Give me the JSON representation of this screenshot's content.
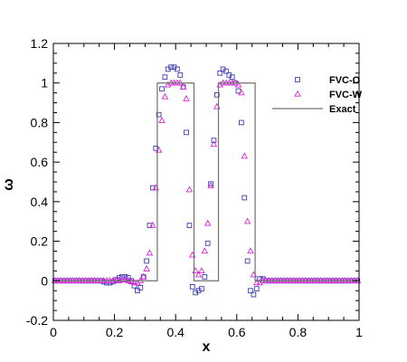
{
  "chart_data": {
    "type": "scatter",
    "xlabel": "x",
    "ylabel": "ω",
    "xlim": [
      0,
      1
    ],
    "ylim": [
      -0.2,
      1.2
    ],
    "xticks": [
      0,
      0.2,
      0.4,
      0.6,
      0.8,
      1
    ],
    "xtick_labels": [
      "0",
      "0.2",
      "0.4",
      "0.6",
      "0.8",
      "1"
    ],
    "yticks": [
      -0.2,
      0,
      0.2,
      0.4,
      0.6,
      0.8,
      1,
      1.2
    ],
    "ytick_labels": [
      "-0.2",
      "0",
      "0.2",
      "0.4",
      "0.6",
      "0.8",
      "1",
      "1.2"
    ],
    "grid": false,
    "legend_position": "top-right",
    "series": [
      {
        "name": "FVC-O",
        "marker": "square",
        "color": "#3b3bb3",
        "x": [
          0.005,
          0.015,
          0.025,
          0.035,
          0.045,
          0.055,
          0.065,
          0.075,
          0.085,
          0.095,
          0.105,
          0.115,
          0.125,
          0.135,
          0.145,
          0.155,
          0.165,
          0.175,
          0.185,
          0.195,
          0.205,
          0.215,
          0.225,
          0.235,
          0.245,
          0.255,
          0.265,
          0.275,
          0.285,
          0.295,
          0.305,
          0.315,
          0.325,
          0.335,
          0.345,
          0.355,
          0.365,
          0.375,
          0.385,
          0.395,
          0.405,
          0.415,
          0.425,
          0.435,
          0.445,
          0.455,
          0.465,
          0.475,
          0.485,
          0.495,
          0.505,
          0.515,
          0.525,
          0.535,
          0.545,
          0.555,
          0.565,
          0.575,
          0.585,
          0.595,
          0.605,
          0.615,
          0.625,
          0.635,
          0.645,
          0.655,
          0.665,
          0.675,
          0.685,
          0.695,
          0.705,
          0.715,
          0.725,
          0.735,
          0.745,
          0.755,
          0.765,
          0.775,
          0.785,
          0.795,
          0.805,
          0.815,
          0.825,
          0.835,
          0.845,
          0.855,
          0.865,
          0.875,
          0.885,
          0.895,
          0.905,
          0.915,
          0.925,
          0.935,
          0.945,
          0.955,
          0.965,
          0.975,
          0.985,
          0.995
        ],
        "y": [
          0,
          0,
          0,
          0,
          0,
          0,
          0,
          0,
          0,
          0,
          0,
          0,
          0,
          0,
          0,
          0,
          -0.005,
          -0.01,
          -0.01,
          -0.005,
          0.005,
          0.015,
          0.02,
          0.02,
          0.015,
          0.0,
          -0.025,
          -0.05,
          -0.035,
          0.02,
          0.1,
          0.28,
          0.47,
          0.67,
          0.84,
          0.97,
          1.03,
          1.07,
          1.08,
          1.08,
          1.07,
          1.04,
          0.98,
          0.75,
          0.28,
          -0.03,
          -0.06,
          -0.05,
          -0.04,
          0.02,
          0.19,
          0.49,
          0.71,
          0.94,
          1.05,
          1.07,
          1.06,
          1.04,
          1.03,
          1.0,
          0.96,
          0.8,
          0.42,
          0.1,
          -0.05,
          -0.07,
          -0.04,
          0.01,
          0.01,
          0.0,
          0,
          0,
          0,
          0,
          0,
          0,
          0,
          0,
          0,
          0,
          0,
          0,
          0,
          0,
          0,
          0,
          0,
          0,
          0,
          0,
          0,
          0,
          0,
          0,
          0,
          0,
          0,
          0,
          0,
          0
        ]
      },
      {
        "name": "FVC-W",
        "marker": "triangle",
        "color": "#d726d7",
        "x": [
          0.005,
          0.015,
          0.025,
          0.035,
          0.045,
          0.055,
          0.065,
          0.075,
          0.085,
          0.095,
          0.105,
          0.115,
          0.125,
          0.135,
          0.145,
          0.155,
          0.165,
          0.175,
          0.185,
          0.195,
          0.205,
          0.215,
          0.225,
          0.235,
          0.245,
          0.255,
          0.265,
          0.275,
          0.285,
          0.295,
          0.305,
          0.315,
          0.325,
          0.335,
          0.345,
          0.355,
          0.365,
          0.375,
          0.385,
          0.395,
          0.405,
          0.415,
          0.425,
          0.435,
          0.445,
          0.455,
          0.465,
          0.475,
          0.485,
          0.495,
          0.505,
          0.515,
          0.525,
          0.535,
          0.545,
          0.555,
          0.565,
          0.575,
          0.585,
          0.595,
          0.605,
          0.615,
          0.625,
          0.635,
          0.645,
          0.655,
          0.665,
          0.675,
          0.685,
          0.695,
          0.705,
          0.715,
          0.725,
          0.735,
          0.745,
          0.755,
          0.765,
          0.775,
          0.785,
          0.795,
          0.805,
          0.815,
          0.825,
          0.835,
          0.845,
          0.855,
          0.865,
          0.875,
          0.885,
          0.895,
          0.905,
          0.915,
          0.925,
          0.935,
          0.945,
          0.955,
          0.965,
          0.975,
          0.985,
          0.995
        ],
        "y": [
          0,
          0,
          0,
          0,
          0,
          0,
          0,
          0,
          0,
          0,
          0,
          0,
          0,
          0,
          0,
          0,
          0,
          0,
          0,
          0,
          0,
          0,
          0.005,
          0.005,
          0,
          -0.005,
          -0.01,
          -0.01,
          0.0,
          0.02,
          0.06,
          0.14,
          0.28,
          0.47,
          0.66,
          0.81,
          0.93,
          0.99,
          1.0,
          1.0,
          1.0,
          1.0,
          0.98,
          0.92,
          0.46,
          0.13,
          0.05,
          0.03,
          0.05,
          0.15,
          0.29,
          0.48,
          0.69,
          0.88,
          0.99,
          1.0,
          1.0,
          1.0,
          1.0,
          1.0,
          0.99,
          0.95,
          0.63,
          0.3,
          0.15,
          0.03,
          -0.01,
          -0.01,
          0,
          0,
          0,
          0,
          0,
          0,
          0,
          0,
          0,
          0,
          0,
          0,
          0,
          0,
          0,
          0,
          0,
          0,
          0,
          0,
          0,
          0,
          0,
          0,
          0,
          0,
          0,
          0,
          0,
          0,
          0,
          0
        ]
      },
      {
        "name": "Exact",
        "line": "solid",
        "color": "#707070",
        "x": [
          0,
          0.34,
          0.34,
          0.46,
          0.46,
          0.54,
          0.54,
          0.66,
          0.66,
          1
        ],
        "y": [
          0,
          0,
          1,
          1,
          0,
          0,
          1,
          1,
          0,
          0
        ]
      }
    ]
  }
}
